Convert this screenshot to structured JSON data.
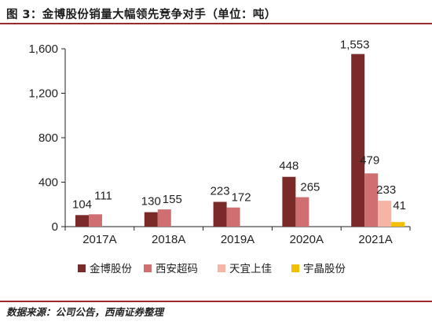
{
  "header": {
    "figure_title": "图 3：金博股份销量大幅领先竞争对手（单位：吨）"
  },
  "footer": {
    "source": "数据来源：公司公告，西南证券整理"
  },
  "colors": {
    "rule": "#9e2b2b",
    "series": [
      "#7b2a2a",
      "#cf6f72",
      "#f5b4a4",
      "#f2c000"
    ]
  },
  "chart_data": {
    "type": "bar",
    "title": "金博股份销量大幅领先竞争对手（单位：吨）",
    "xlabel": "",
    "ylabel": "",
    "categories": [
      "2017A",
      "2018A",
      "2019A",
      "2020A",
      "2021A"
    ],
    "ylim": [
      0,
      1600
    ],
    "yticks": [
      0,
      400,
      800,
      1200,
      1600
    ],
    "ytick_labels": [
      "0",
      "400",
      "800",
      "1,200",
      "1,600"
    ],
    "grid": false,
    "legend_position": "bottom",
    "series": [
      {
        "name": "金博股份",
        "values": [
          104,
          130,
          223,
          448,
          1553
        ],
        "labels": [
          "104",
          "130",
          "223",
          "448",
          "1,553"
        ]
      },
      {
        "name": "西安超码",
        "values": [
          111,
          155,
          172,
          265,
          479
        ],
        "labels": [
          "111",
          "155",
          "172",
          "265",
          "479"
        ]
      },
      {
        "name": "天宜上佳",
        "values": [
          null,
          null,
          null,
          null,
          233
        ],
        "labels": [
          "",
          "",
          "",
          "",
          "233"
        ]
      },
      {
        "name": "宇晶股份",
        "values": [
          null,
          null,
          null,
          null,
          41
        ],
        "labels": [
          "",
          "",
          "",
          "",
          "41"
        ]
      }
    ]
  }
}
